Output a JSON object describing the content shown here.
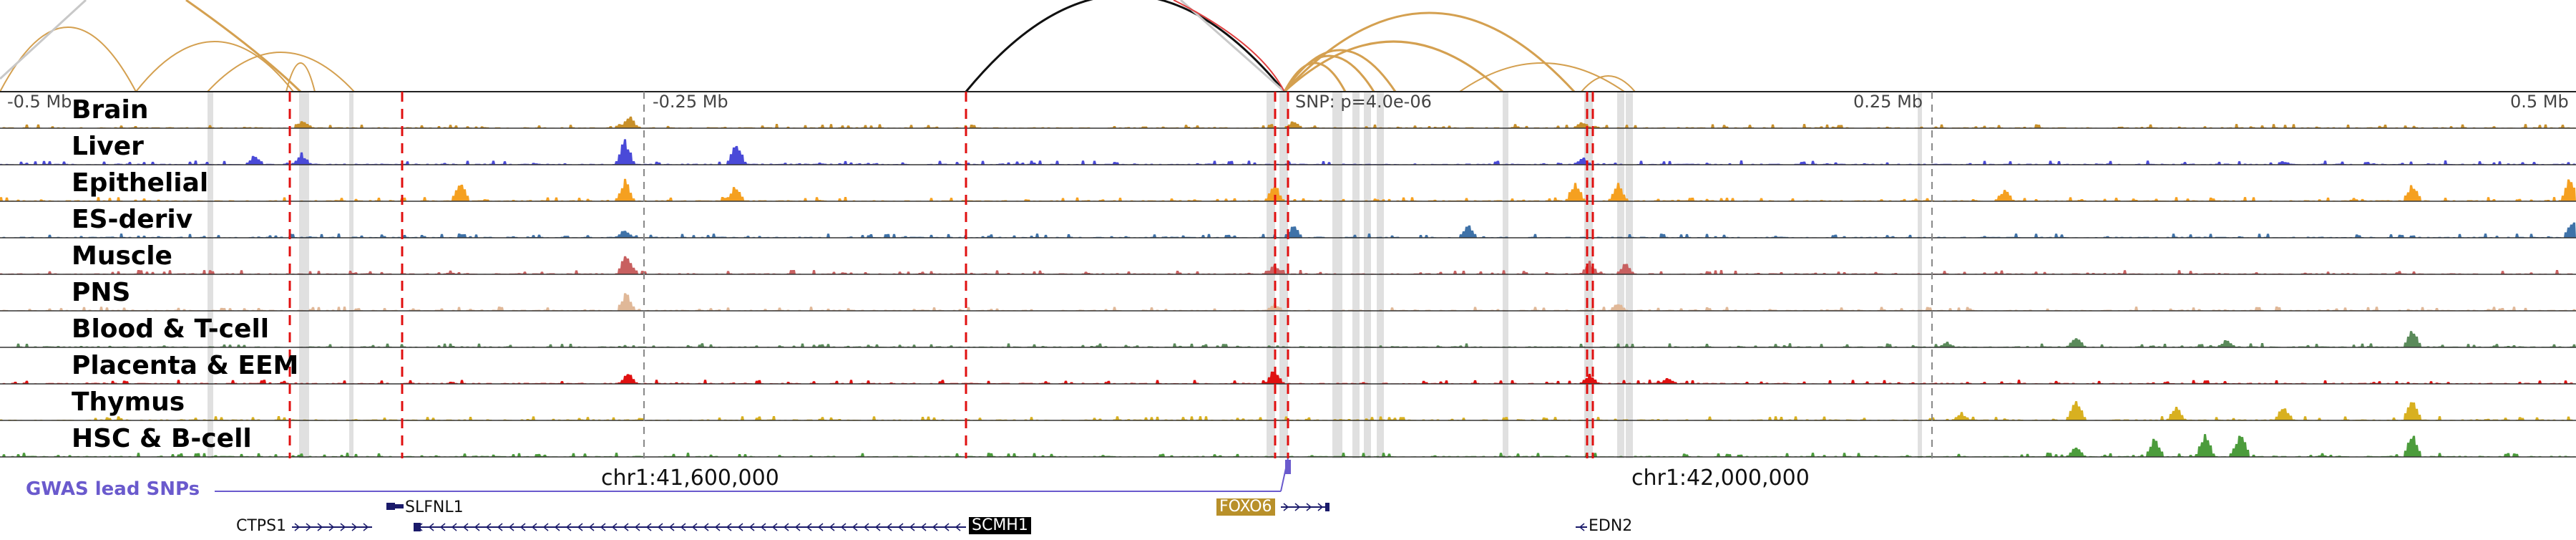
{
  "axis": {
    "ticks": [
      "-0.5 Mb",
      "-0.25 Mb",
      "0.25 Mb",
      "0.5 Mb"
    ],
    "snp_label": "SNP: p=4.0e-06",
    "coords": [
      "chr1:41,600,000",
      "chr1:42,000,000"
    ]
  },
  "tracks": [
    {
      "label": "Brain",
      "color": "#c8902a"
    },
    {
      "label": "Liver",
      "color": "#4a4ad8"
    },
    {
      "label": "Epithelial",
      "color": "#f5a020"
    },
    {
      "label": "ES-deriv",
      "color": "#3f72a8"
    },
    {
      "label": "Muscle",
      "color": "#c86060"
    },
    {
      "label": "PNS",
      "color": "#e0b898"
    },
    {
      "label": "Blood & T-cell",
      "color": "#5a8a5a"
    },
    {
      "label": "Placenta & EEM",
      "color": "#e01010"
    },
    {
      "label": "Thymus",
      "color": "#d8b020"
    },
    {
      "label": "HSC & B-cell",
      "color": "#4c9c3c"
    }
  ],
  "gwas": {
    "label": "GWAS lead SNPs",
    "color": "#6a5acd"
  },
  "genes": {
    "slfnl1": "SLFNL1",
    "ctps1": "CTPS1",
    "scmh1": "SCMH1",
    "foxo6": "FOXO6",
    "edn2": "EDN2"
  },
  "colors": {
    "loop_gold": "#d4a050",
    "loop_black": "#111111",
    "loop_grey": "#c8c8c8",
    "highlight": "#e0e0e0",
    "dashed_red": "#e01010",
    "gene_line": "#1a1a6a"
  }
}
